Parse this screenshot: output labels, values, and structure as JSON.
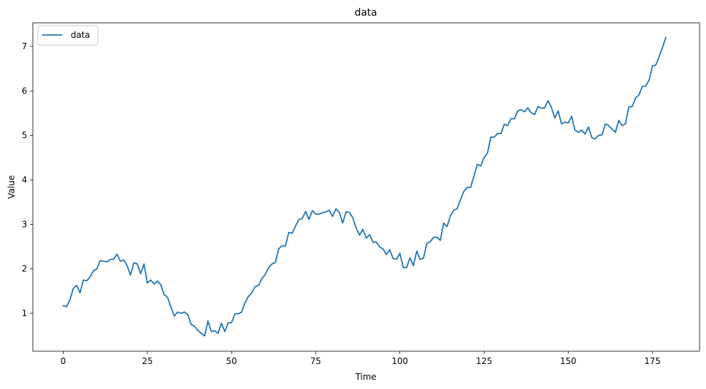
{
  "chart_data": {
    "type": "line",
    "title": "data",
    "xlabel": "Time",
    "ylabel": "Value",
    "xlim": [
      -9,
      189
    ],
    "ylim": [
      0.15,
      7.53
    ],
    "xticks": [
      0,
      25,
      50,
      75,
      100,
      125,
      150,
      175
    ],
    "yticks": [
      1,
      2,
      3,
      4,
      5,
      6,
      7
    ],
    "grid": false,
    "legend": "top-left",
    "series": [
      {
        "name": "data",
        "color": "#1f77b4",
        "x_start": 0,
        "x_step": 1,
        "values": [
          1.17,
          1.15,
          1.3,
          1.56,
          1.63,
          1.46,
          1.75,
          1.73,
          1.82,
          1.96,
          2.0,
          2.19,
          2.17,
          2.16,
          2.21,
          2.22,
          2.33,
          2.17,
          2.2,
          2.07,
          1.86,
          2.14,
          2.11,
          1.89,
          2.11,
          1.68,
          1.75,
          1.66,
          1.73,
          1.64,
          1.42,
          1.36,
          1.14,
          0.94,
          1.03,
          1.0,
          1.03,
          0.97,
          0.75,
          0.71,
          0.62,
          0.55,
          0.49,
          0.83,
          0.59,
          0.61,
          0.55,
          0.78,
          0.59,
          0.79,
          0.79,
          0.99,
          0.99,
          1.03,
          1.24,
          1.38,
          1.46,
          1.6,
          1.63,
          1.78,
          1.87,
          2.03,
          2.11,
          2.14,
          2.45,
          2.52,
          2.51,
          2.82,
          2.8,
          2.96,
          3.11,
          3.13,
          3.29,
          3.11,
          3.31,
          3.23,
          3.23,
          3.26,
          3.28,
          3.32,
          3.18,
          3.35,
          3.27,
          3.03,
          3.28,
          3.27,
          3.15,
          2.92,
          2.76,
          2.89,
          2.69,
          2.77,
          2.6,
          2.6,
          2.49,
          2.45,
          2.32,
          2.43,
          2.23,
          2.22,
          2.35,
          2.03,
          2.03,
          2.25,
          2.07,
          2.4,
          2.21,
          2.24,
          2.57,
          2.61,
          2.71,
          2.71,
          2.64,
          3.03,
          2.95,
          3.19,
          3.32,
          3.35,
          3.56,
          3.74,
          3.83,
          3.83,
          4.09,
          4.35,
          4.31,
          4.5,
          4.6,
          4.96,
          4.96,
          5.04,
          5.04,
          5.25,
          5.22,
          5.38,
          5.37,
          5.55,
          5.58,
          5.53,
          5.62,
          5.51,
          5.47,
          5.65,
          5.61,
          5.62,
          5.78,
          5.63,
          5.39,
          5.55,
          5.26,
          5.3,
          5.28,
          5.43,
          5.12,
          5.07,
          5.12,
          5.03,
          5.19,
          4.95,
          4.92,
          5.0,
          5.01,
          5.26,
          5.22,
          5.14,
          5.07,
          5.34,
          5.22,
          5.26,
          5.64,
          5.65,
          5.84,
          5.91,
          6.1,
          6.11,
          6.24,
          6.56,
          6.58,
          6.77,
          6.98,
          7.2
        ]
      }
    ]
  }
}
